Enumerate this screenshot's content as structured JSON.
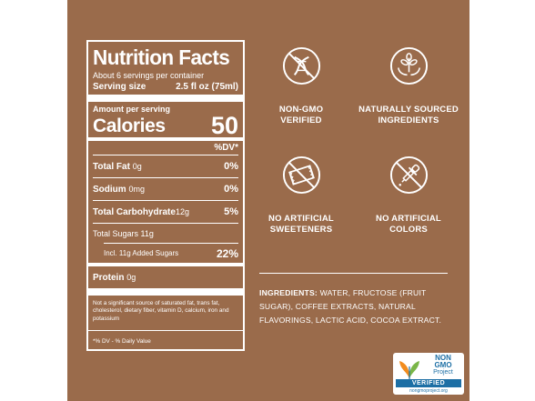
{
  "nutrition": {
    "title": "Nutrition Facts",
    "servings": "About 6 servings per container",
    "serving_size_label": "Serving size",
    "serving_size_value": "2.5 fl oz (75ml)",
    "amount_per_serving": "Amount per serving",
    "calories_label": "Calories",
    "calories_value": "50",
    "dv_header": "%DV*",
    "rows": {
      "fat": {
        "name": "Total Fat",
        "qty": "0g",
        "pct": "0%"
      },
      "sodium": {
        "name": "Sodium",
        "qty": "0mg",
        "pct": "0%"
      },
      "carb": {
        "name": "Total Carbohydrate",
        "qty": "12g",
        "pct": "5%"
      },
      "sugars": {
        "name": "Total Sugars 11g"
      },
      "added": {
        "name": "Incl. 11g Added Sugars",
        "pct": "22%"
      },
      "protein": {
        "name": "Protein",
        "qty": "0g"
      }
    },
    "note": "Not a significant source of saturated fat, trans fat, cholesterol, dietary fiber, vitamin D, calcium, iron and potassium",
    "footnote": "*% DV - % Daily Value"
  },
  "badges": [
    {
      "label1": "NON-GMO",
      "label2": "VERIFIED",
      "icon": "dna-crossed-icon"
    },
    {
      "label1": "NATURALLY SOURCED",
      "label2": "INGREDIENTS",
      "icon": "plant-hands-icon"
    },
    {
      "label1": "NO ARTIFICIAL",
      "label2": "SWEETENERS",
      "icon": "sweetener-packet-crossed-icon"
    },
    {
      "label1": "NO ARTIFICIAL",
      "label2": "COLORS",
      "icon": "dropper-crossed-icon"
    }
  ],
  "ingredients": {
    "heading": "INGREDIENTS:",
    "text": "WATER, FRUCTOSE (FRUIT SUGAR), COFFEE EXTRACTS, NATURAL FLAVORINGS, LACTIC ACID, COCOA EXTRACT."
  },
  "logo": {
    "line1": "NON",
    "line2": "GMO",
    "line3": "Project",
    "verified": "VERIFIED",
    "url": "nongmoproject.org"
  },
  "colors": {
    "panel": "#9a6b4b",
    "text": "#ffffff",
    "logo_blue": "#1d6fa5"
  }
}
